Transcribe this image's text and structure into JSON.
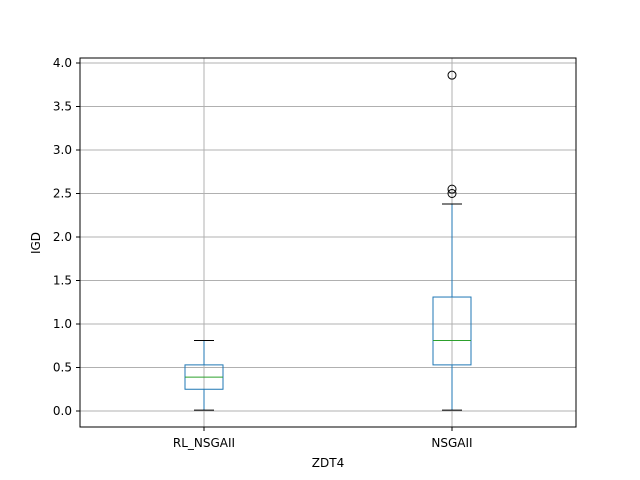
{
  "chart_data": {
    "type": "box",
    "title": "",
    "xlabel": "ZDT4",
    "ylabel": "IGD",
    "ylim": [
      -0.18,
      4.05
    ],
    "yticks": [
      0.0,
      0.5,
      1.0,
      1.5,
      2.0,
      2.5,
      3.0,
      3.5,
      4.0
    ],
    "ytick_labels": [
      "0.0",
      "0.5",
      "1.0",
      "1.5",
      "2.0",
      "2.5",
      "3.0",
      "3.5",
      "4.0"
    ],
    "grid": true,
    "categories": [
      "RL_NSGAII",
      "NSGAII"
    ],
    "boxes": [
      {
        "whisker_low": 0.01,
        "q1": 0.25,
        "median": 0.39,
        "q3": 0.53,
        "whisker_high": 0.81,
        "outliers": []
      },
      {
        "whisker_low": 0.01,
        "q1": 0.53,
        "median": 0.81,
        "q3": 1.31,
        "whisker_high": 2.38,
        "outliers": [
          2.5,
          2.55,
          3.86
        ]
      }
    ],
    "colors": {
      "box": "#1f77b4",
      "median": "#2ca02c",
      "grid": "#b0b0b0"
    }
  }
}
